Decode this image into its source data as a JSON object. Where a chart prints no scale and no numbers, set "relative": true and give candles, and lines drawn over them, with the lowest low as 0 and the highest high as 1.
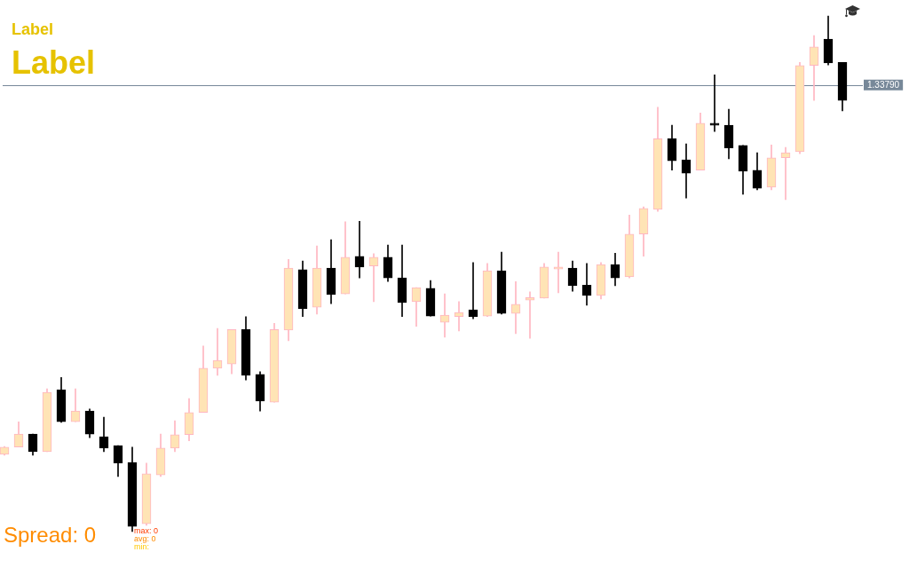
{
  "chart_data": {
    "type": "candlestick",
    "relative": true,
    "categories": [
      null,
      null,
      null,
      null,
      null,
      null,
      null,
      null,
      null,
      null,
      null,
      null,
      null,
      null,
      null,
      null,
      null,
      null,
      null,
      null,
      null,
      null,
      null,
      null,
      null,
      null,
      null,
      null,
      null,
      null,
      null,
      null,
      null,
      null,
      null,
      null,
      null,
      null,
      null,
      null,
      null,
      null,
      null,
      null,
      null,
      null,
      null,
      null,
      null,
      null,
      null,
      null,
      null,
      null,
      null,
      null,
      null,
      null,
      null,
      null
    ],
    "ohlc": [
      [
        0.15,
        0.165,
        0.148,
        0.164
      ],
      [
        0.164,
        0.213,
        0.164,
        0.189
      ],
      [
        0.189,
        0.189,
        0.148,
        0.155
      ],
      [
        0.155,
        0.277,
        0.155,
        0.27
      ],
      [
        0.275,
        0.299,
        0.212,
        0.213
      ],
      [
        0.213,
        0.277,
        0.213,
        0.234
      ],
      [
        0.234,
        0.238,
        0.182,
        0.189
      ],
      [
        0.184,
        0.222,
        0.155,
        0.162
      ],
      [
        0.167,
        0.167,
        0.107,
        0.133
      ],
      [
        0.134,
        0.164,
        0,
        0.01
      ],
      [
        0.015,
        0.133,
        0.012,
        0.112
      ],
      [
        0.11,
        0.189,
        0.107,
        0.162
      ],
      [
        0.162,
        0.215,
        0.155,
        0.188
      ],
      [
        0.188,
        0.258,
        0.176,
        0.231
      ],
      [
        0.231,
        0.36,
        0.231,
        0.317
      ],
      [
        0.317,
        0.394,
        0.303,
        0.332
      ],
      [
        0.325,
        0.392,
        0.306,
        0.392
      ],
      [
        0.392,
        0.417,
        0.294,
        0.303
      ],
      [
        0.305,
        0.31,
        0.234,
        0.253
      ],
      [
        0.251,
        0.404,
        0.251,
        0.392
      ],
      [
        0.391,
        0.528,
        0.37,
        0.511
      ],
      [
        0.508,
        0.525,
        0.417,
        0.432
      ],
      [
        0.435,
        0.554,
        0.422,
        0.511
      ],
      [
        0.511,
        0.566,
        0.442,
        0.46
      ],
      [
        0.461,
        0.601,
        0.461,
        0.532
      ],
      [
        0.534,
        0.602,
        0.492,
        0.513
      ],
      [
        0.515,
        0.539,
        0.446,
        0.532
      ],
      [
        0.532,
        0.556,
        0.485,
        0.492
      ],
      [
        0.492,
        0.556,
        0.417,
        0.444
      ],
      [
        0.446,
        0.473,
        0.398,
        0.473
      ],
      [
        0.472,
        0.487,
        0.418,
        0.418
      ],
      [
        0.406,
        0.461,
        0.377,
        0.42
      ],
      [
        0.417,
        0.446,
        0.389,
        0.425
      ],
      [
        0.43,
        0.522,
        0.413,
        0.417
      ],
      [
        0.418,
        0.52,
        0.417,
        0.506
      ],
      [
        0.506,
        0.542,
        0.422,
        0.423
      ],
      [
        0.423,
        0.485,
        0.384,
        0.441
      ],
      [
        0.449,
        0.465,
        0.375,
        0.454
      ],
      [
        0.453,
        0.52,
        0.453,
        0.513
      ],
      [
        0.509,
        0.542,
        0.463,
        0.513
      ],
      [
        0.511,
        0.525,
        0.466,
        0.477
      ],
      [
        0.478,
        0.52,
        0.439,
        0.458
      ],
      [
        0.458,
        0.522,
        0.451,
        0.518
      ],
      [
        0.518,
        0.54,
        0.477,
        0.492
      ],
      [
        0.494,
        0.614,
        0.492,
        0.577
      ],
      [
        0.577,
        0.63,
        0.534,
        0.627
      ],
      [
        0.625,
        0.823,
        0.621,
        0.762
      ],
      [
        0.762,
        0.788,
        0.701,
        0.719
      ],
      [
        0.721,
        0.752,
        0.647,
        0.695
      ],
      [
        0.701,
        0.812,
        0.701,
        0.792
      ],
      [
        0.792,
        0.886,
        0.776,
        0.788
      ],
      [
        0.788,
        0.819,
        0.723,
        0.744
      ],
      [
        0.749,
        0.749,
        0.654,
        0.699
      ],
      [
        0.701,
        0.735,
        0.663,
        0.666
      ],
      [
        0.668,
        0.75,
        0.663,
        0.725
      ],
      [
        0.725,
        0.745,
        0.644,
        0.735
      ],
      [
        0.737,
        0.91,
        0.733,
        0.904
      ],
      [
        0.904,
        0.962,
        0.836,
        0.94
      ],
      [
        0.955,
        1,
        0.905,
        0.909
      ],
      [
        0.91,
        0.91,
        0.816,
        0.836
      ]
    ],
    "colors": [
      "#ffb6c1",
      "#ffb6c1",
      "#000000",
      "#ffb6c1",
      "#000000",
      "#ffb6c1",
      "#000000",
      "#000000",
      "#000000",
      "#000000",
      "#ffb6c1",
      "#ffb6c1",
      "#ffb6c1",
      "#ffb6c1",
      "#ffb6c1",
      "#ffb6c1",
      "#ffb6c1",
      "#000000",
      "#000000",
      "#ffb6c1",
      "#ffb6c1",
      "#000000",
      "#ffb6c1",
      "#000000",
      "#ffb6c1",
      "#000000",
      "#ffb6c1",
      "#000000",
      "#000000",
      "#ffb6c1",
      "#000000",
      "#ffb6c1",
      "#ffb6c1",
      "#000000",
      "#ffb6c1",
      "#000000",
      "#ffb6c1",
      "#ffb6c1",
      "#ffb6c1",
      "#ffb6c1",
      "#000000",
      "#000000",
      "#ffb6c1",
      "#000000",
      "#ffb6c1",
      "#ffb6c1",
      "#ffb6c1",
      "#000000",
      "#000000",
      "#ffb6c1",
      "#000000",
      "#000000",
      "#000000",
      "#000000",
      "#ffb6c1",
      "#ffb6c1",
      "#ffb6c1",
      "#ffb6c1",
      "#000000",
      "#000000"
    ],
    "ref_lines": [
      {
        "axis": "y",
        "value": 0.866,
        "color": "#778899"
      }
    ],
    "annotations": [
      "Label",
      "Label",
      "1.33790",
      "Spread: 0",
      "max: 0",
      "avg: 0",
      "min:"
    ]
  }
}
